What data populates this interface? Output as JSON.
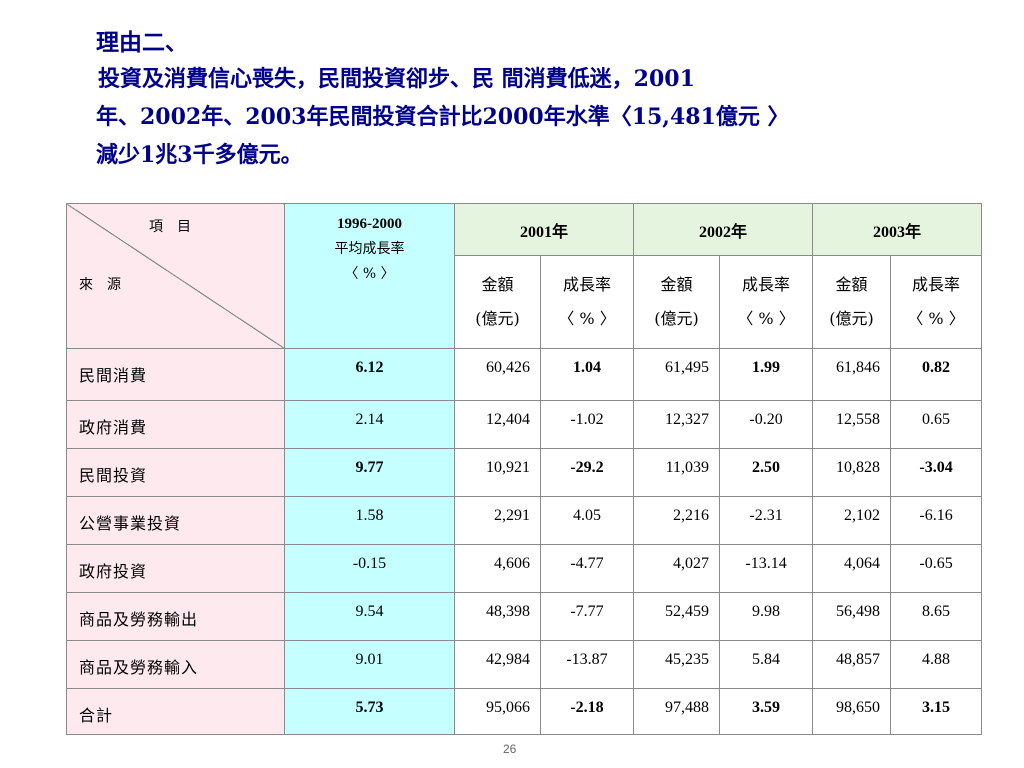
{
  "heading": {
    "line1": "理由二、",
    "line2": "投資及消費信心喪失，民間投資卻步、民 間消費低迷，2001",
    "line3": "年、2002年、2003年民間投資合計比2000年水準〈15,481億元 〉",
    "line4": "減少1兆3千多億元。"
  },
  "table": {
    "corner_top": "項　目",
    "corner_bottom": "來　源",
    "avg_header": {
      "line1": "1996-2000",
      "line2": "平均成長率",
      "line3": "〈 % 〉"
    },
    "years": [
      "2001年",
      "2002年",
      "2003年"
    ],
    "amount_label": {
      "line1": "金額",
      "line2": "(億元)"
    },
    "growth_label": {
      "line1": "成長率",
      "line2": "〈 % 〉"
    },
    "rows": [
      {
        "label": "民間消費",
        "avg": "6.12",
        "a2001": "60,426",
        "g2001": "1.04",
        "a2002": "61,495",
        "g2002": "1.99",
        "a2003": "61,846",
        "g2003": "0.82"
      },
      {
        "label": "政府消費",
        "avg": "2.14",
        "a2001": "12,404",
        "g2001": "-1.02",
        "a2002": "12,327",
        "g2002": "-0.20",
        "a2003": "12,558",
        "g2003": "0.65"
      },
      {
        "label": "民間投資",
        "avg": "9.77",
        "a2001": "10,921",
        "g2001": "-29.2",
        "a2002": "11,039",
        "g2002": "2.50",
        "a2003": "10,828",
        "g2003": "-3.04"
      },
      {
        "label": "公營事業投資",
        "avg": "1.58",
        "a2001": "2,291",
        "g2001": "4.05",
        "a2002": "2,216",
        "g2002": "-2.31",
        "a2003": "2,102",
        "g2003": "-6.16"
      },
      {
        "label": "政府投資",
        "avg": "-0.15",
        "a2001": "4,606",
        "g2001": "-4.77",
        "a2002": "4,027",
        "g2002": "-13.14",
        "a2003": "4,064",
        "g2003": "-0.65"
      },
      {
        "label": "商品及勞務輸出",
        "avg": "9.54",
        "a2001": "48,398",
        "g2001": "-7.77",
        "a2002": "52,459",
        "g2002": "9.98",
        "a2003": "56,498",
        "g2003": "8.65"
      },
      {
        "label": "商品及勞務輸入",
        "avg": "9.01",
        "a2001": "42,984",
        "g2001": "-13.87",
        "a2002": "45,235",
        "g2002": "5.84",
        "a2003": "48,857",
        "g2003": "4.88"
      },
      {
        "label": "合計",
        "avg": "5.73",
        "a2001": "95,066",
        "g2001": "-2.18",
        "a2002": "97,488",
        "g2002": "3.59",
        "a2003": "98,650",
        "g2003": "3.15"
      }
    ]
  },
  "colors": {
    "heading_text": "#00008B",
    "label_bg": "#FDE9EE",
    "avg_bg": "#C6FFFF",
    "year_header_bg": "#E4F4DF",
    "faint_text": "#A7A7EE"
  },
  "page_number": "26"
}
